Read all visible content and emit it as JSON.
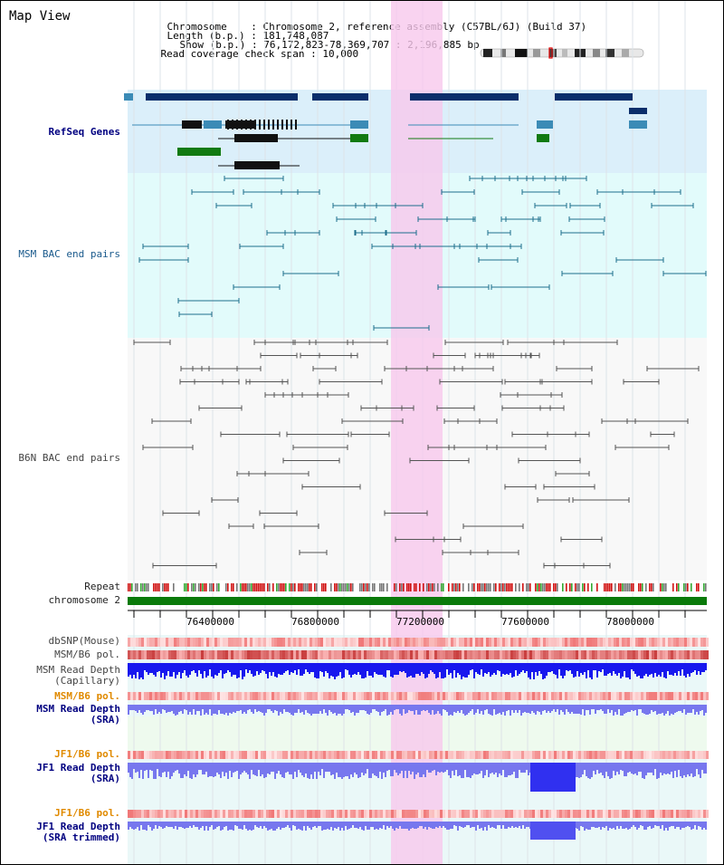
{
  "title": "Map View",
  "info": {
    "chromosome_label": "Chromosome",
    "chromosome_value": "Chromosome 2, reference assembly (C57BL/6J) (Build 37)",
    "length_label": "Length (b.p.)",
    "length_value": "181,748,087",
    "show_label": "Show (b.p.)",
    "show_value": "76,172,823-78,369,707 : 2,196,885 bp",
    "coverage_label": "Read coverage check span",
    "coverage_value": "10,000"
  },
  "tracks": {
    "refseq": "RefSeq Genes",
    "msm_bac": "MSM BAC end pairs",
    "b6n_bac": "B6N BAC end pairs",
    "repeat": "Repeat",
    "chromosome": "chromosome 2",
    "dbsnp": "dbSNP(Mouse)",
    "msm_b6_pol": "MSM/B6 pol.",
    "msm_read_depth_cap": "MSM Read Depth\n(Capillary)",
    "msm_b6_pol2": "MSM/B6 pol.",
    "msm_read_depth_sra": "MSM Read Depth\n(SRA)",
    "jf1_b6_pol": "JF1/B6 pol.",
    "jf1_read_depth_sra": "JF1 Read Depth\n(SRA)",
    "jf1_b6_pol2": "JF1/B6 pol.",
    "jf1_read_depth_trim": "JF1 Read Depth\n(SRA trimmed)"
  },
  "axis": {
    "ticks": [
      "76400000",
      "76800000",
      "77200000",
      "77600000",
      "78000000"
    ]
  },
  "colors": {
    "highlight": "#f7c8ec",
    "refseq_bg": "#dbeffa",
    "msm_bg": "#e2fbfb",
    "b6n_bg": "#f8f8f8",
    "gene_dark": "#0b2e6b",
    "gene_mid": "#3b8bb6",
    "gene_green": "#117a11",
    "chrom_green": "#0a7a0a",
    "msm_pair": "#1e6f8c",
    "b6n_pair": "#555555",
    "depth_blue": "#1818ee",
    "depth_light": "#7777ee"
  }
}
